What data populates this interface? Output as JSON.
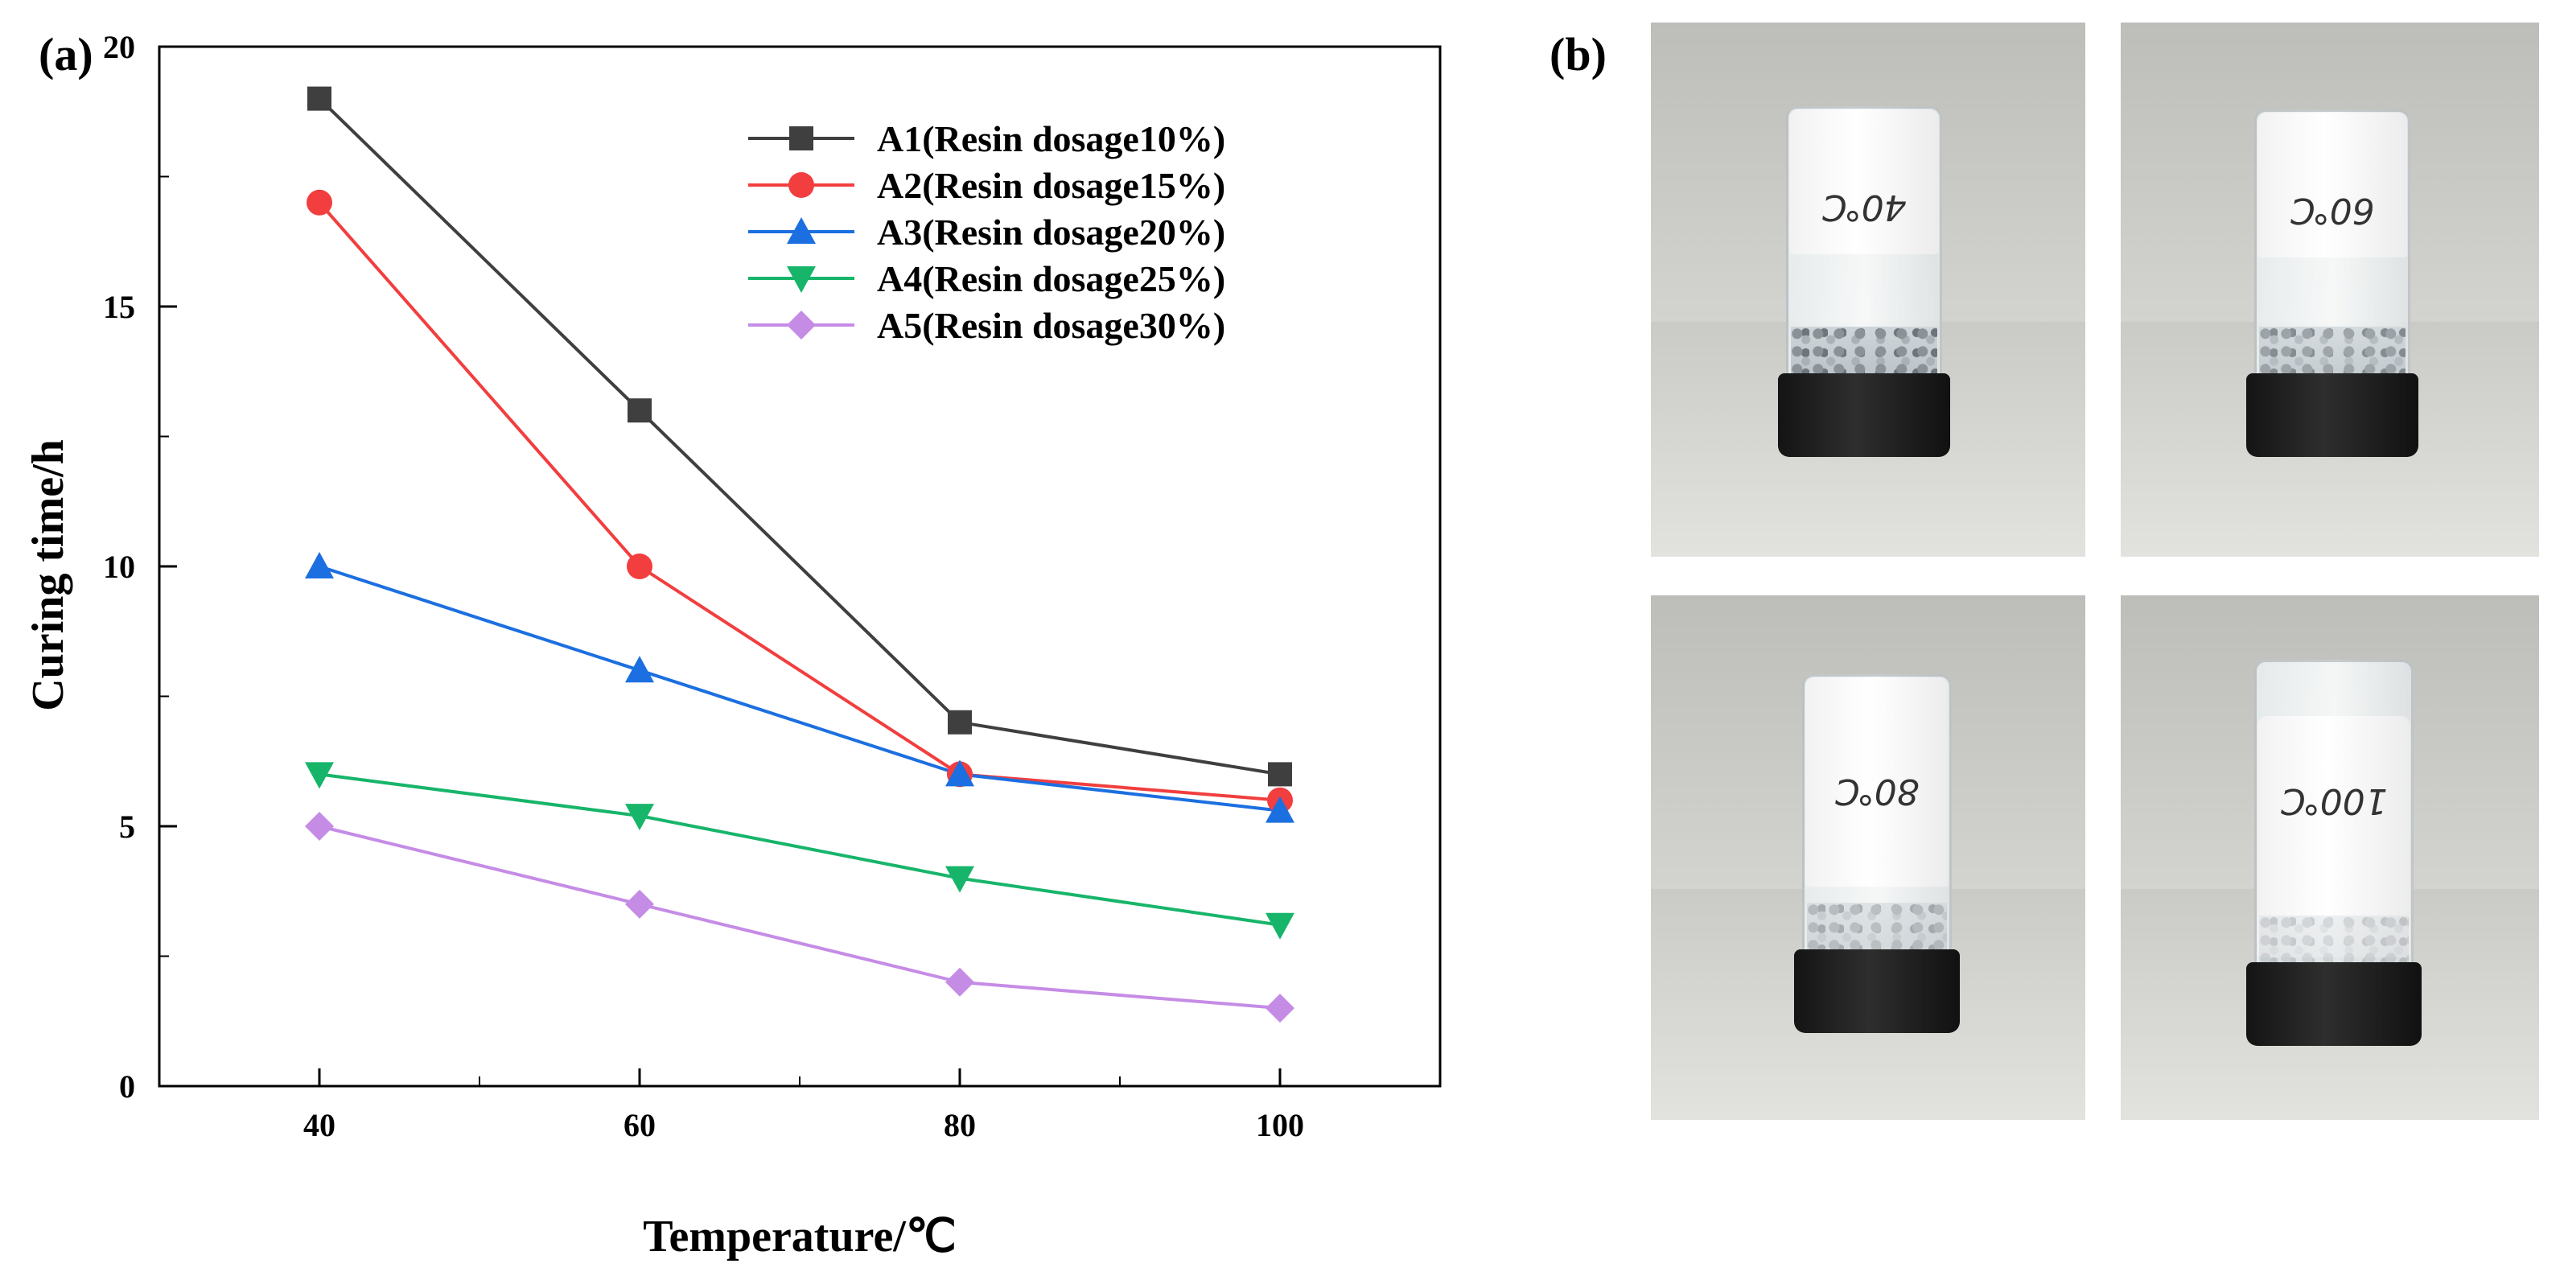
{
  "panels": {
    "a_label": "(a)",
    "b_label": "(b)"
  },
  "chart_data": {
    "type": "line",
    "title": "",
    "xlabel": "Temperature/℃",
    "ylabel": "Curing time/h",
    "x": [
      40,
      60,
      80,
      100
    ],
    "xlim": [
      30,
      110
    ],
    "ylim": [
      0,
      20
    ],
    "yticks": [
      0,
      5,
      10,
      15,
      20
    ],
    "xticks": [
      40,
      60,
      80,
      100
    ],
    "grid": false,
    "legend_position": "top-right",
    "series": [
      {
        "name": "A1(Resin dosage10%)",
        "values": [
          19,
          13,
          7,
          6
        ],
        "color": "#3f3f3f",
        "marker": "square"
      },
      {
        "name": "A2(Resin dosage15%)",
        "values": [
          17,
          10,
          6,
          5.5
        ],
        "color": "#f23e3e",
        "marker": "circle"
      },
      {
        "name": "A3(Resin dosage20%)",
        "values": [
          10,
          8,
          6,
          5.3
        ],
        "color": "#1c6fe0",
        "marker": "triangle-up"
      },
      {
        "name": "A4(Resin dosage25%)",
        "values": [
          6,
          5.2,
          4,
          3.1
        ],
        "color": "#17b56a",
        "marker": "triangle-down"
      },
      {
        "name": "A5(Resin dosage30%)",
        "values": [
          5,
          3.5,
          2,
          1.5
        ],
        "color": "#c58ce6",
        "marker": "diamond"
      }
    ]
  },
  "photos": [
    {
      "marking": "40℃"
    },
    {
      "marking": "60℃"
    },
    {
      "marking": "80℃"
    },
    {
      "marking": "100℃"
    }
  ]
}
